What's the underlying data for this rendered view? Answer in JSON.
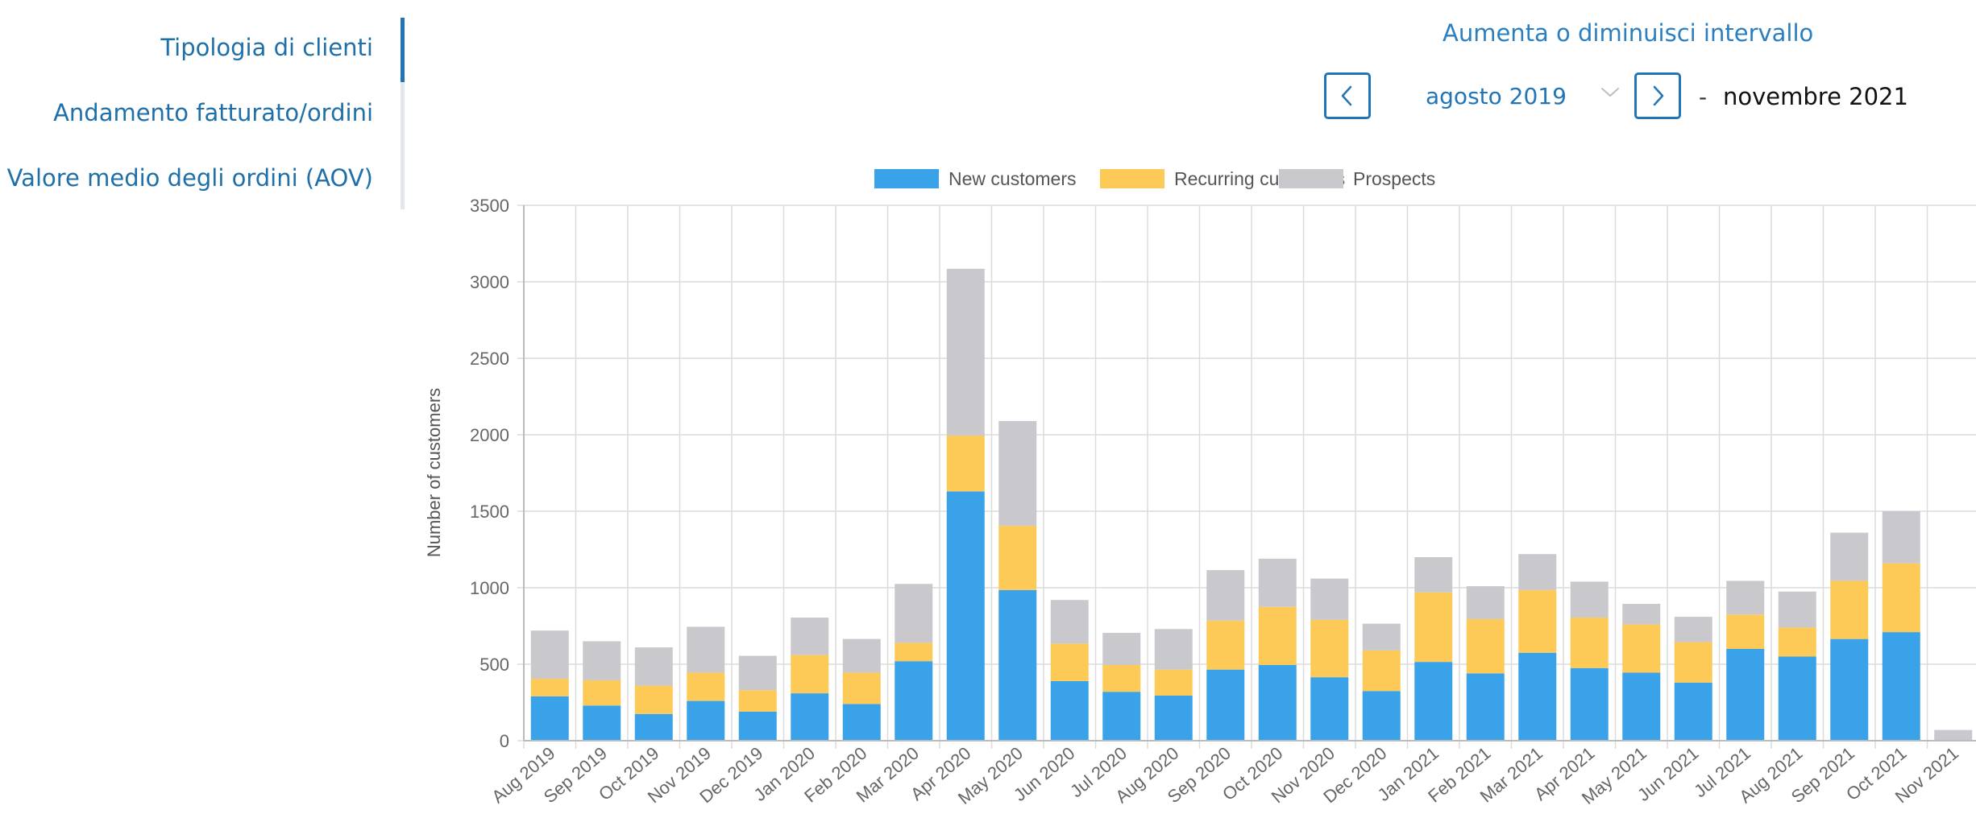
{
  "sidebar": {
    "items": [
      {
        "label": "Tipologia di clienti",
        "active": true
      },
      {
        "label": "Andamento fatturato/ordini",
        "active": false
      },
      {
        "label": "Valore medio degli ordini (AOV)",
        "active": false
      }
    ]
  },
  "range": {
    "title": "Aumenta o diminuisci intervallo",
    "start": "agosto 2019",
    "separator": "-",
    "end": "novembre 2021",
    "prev_icon": "chevron-left-icon",
    "next_icon": "chevron-right-icon",
    "dropdown_icon": "chevron-down-icon"
  },
  "colors": {
    "accent": "#2275b5",
    "new": "#3aa2e9",
    "recurring": "#fdca57",
    "prospects": "#c9c9cd"
  },
  "chart_data": {
    "type": "bar",
    "stacked": true,
    "ylabel": "Number of customers",
    "xlabel": "",
    "ylim": [
      0,
      3500
    ],
    "yticks": [
      0,
      500,
      1000,
      1500,
      2000,
      2500,
      3000,
      3500
    ],
    "grid": true,
    "legend_position": "top-center",
    "categories": [
      "Aug 2019",
      "Sep 2019",
      "Oct 2019",
      "Nov 2019",
      "Dec 2019",
      "Jan 2020",
      "Feb 2020",
      "Mar 2020",
      "Apr 2020",
      "May 2020",
      "Jun 2020",
      "Jul 2020",
      "Aug 2020",
      "Sep 2020",
      "Oct 2020",
      "Nov 2020",
      "Dec 2020",
      "Jan 2021",
      "Feb 2021",
      "Mar 2021",
      "Apr 2021",
      "May 2021",
      "Jun 2021",
      "Jul 2021",
      "Aug 2021",
      "Sep 2021",
      "Oct 2021",
      "Nov 2021"
    ],
    "series": [
      {
        "name": "New customers",
        "color": "#3aa2e9",
        "values": [
          290,
          230,
          175,
          260,
          190,
          310,
          240,
          520,
          1630,
          985,
          390,
          320,
          295,
          465,
          495,
          415,
          325,
          515,
          440,
          575,
          475,
          445,
          380,
          600,
          550,
          665,
          710,
          0
        ]
      },
      {
        "name": "Recurring customers",
        "color": "#fdca57",
        "values": [
          115,
          165,
          185,
          185,
          140,
          250,
          205,
          120,
          365,
          420,
          245,
          175,
          170,
          320,
          380,
          375,
          265,
          455,
          355,
          410,
          330,
          315,
          265,
          225,
          190,
          380,
          450,
          0
        ]
      },
      {
        "name": "Prospects",
        "color": "#c9c9cd",
        "values": [
          315,
          255,
          250,
          300,
          225,
          245,
          220,
          385,
          1090,
          685,
          285,
          210,
          265,
          330,
          315,
          270,
          175,
          230,
          215,
          235,
          235,
          135,
          165,
          220,
          235,
          315,
          340,
          70
        ]
      }
    ]
  }
}
